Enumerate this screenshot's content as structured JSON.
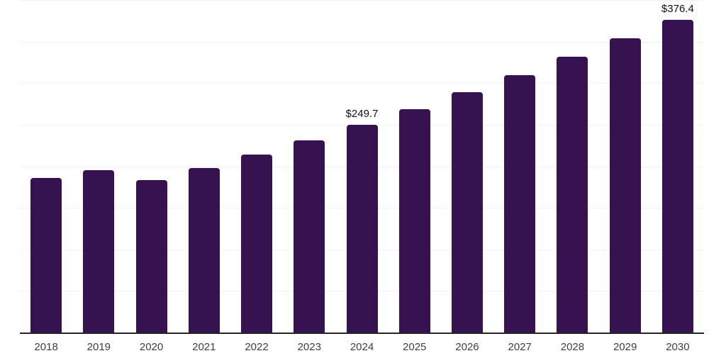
{
  "chart_data": {
    "type": "bar",
    "title": "",
    "xlabel": "",
    "ylabel": "",
    "categories": [
      "2018",
      "2019",
      "2020",
      "2021",
      "2022",
      "2023",
      "2024",
      "2025",
      "2026",
      "2027",
      "2028",
      "2029",
      "2030"
    ],
    "values": [
      186,
      195,
      183,
      198,
      214,
      231,
      249.7,
      269,
      289,
      310,
      332,
      354,
      376.4
    ],
    "ylim": [
      0,
      400
    ],
    "gridline_step": 50,
    "grid": true,
    "legend": false,
    "y_tick_labels_visible": false,
    "data_labels": [
      {
        "category": "2024",
        "text": "$249.7"
      },
      {
        "category": "2030",
        "text": "$376.4"
      }
    ],
    "colors": {
      "bar": "#371250",
      "gridline": "#F2F2F2",
      "axis_line": "#262626",
      "x_tick_label": "#3F3F3F",
      "value_label": "#111111",
      "background": "#FFFFFF"
    }
  }
}
